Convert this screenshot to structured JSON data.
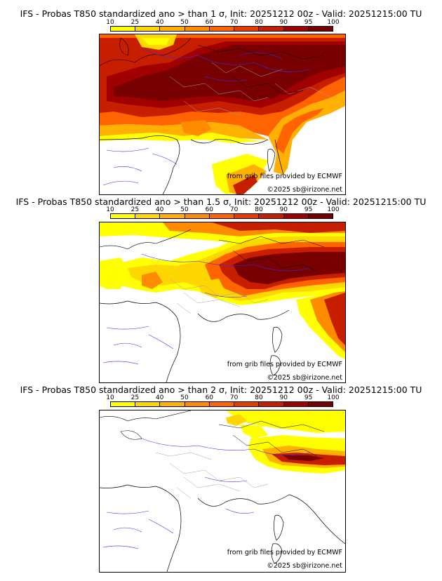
{
  "colorbar": {
    "ticks": [
      "10",
      "25",
      "40",
      "50",
      "60",
      "70",
      "80",
      "90",
      "95",
      "100"
    ],
    "colors": [
      "#ffff00",
      "#ffd700",
      "#ffb000",
      "#ff8c00",
      "#ff6400",
      "#e63c00",
      "#c81e00",
      "#a00000",
      "#780000"
    ]
  },
  "panels": [
    {
      "title": "IFS - Probas T850  standardized ano > than 1 σ, Init: 20251212 00z - Valid: 20251215:00 TU",
      "credit_source": "from grib files provided by ECMWF",
      "credit_copyright": "©2025 sb@irizone.net"
    },
    {
      "title": "IFS - Probas T850  standardized ano > than 1.5 σ, Init: 20251212 00z - Valid: 20251215:00 TU",
      "credit_source": "from grib files provided by ECMWF",
      "credit_copyright": "©2025 sb@irizone.net"
    },
    {
      "title": "IFS - Probas T850  standardized ano > than 2 σ, Init: 20251212 00z - Valid: 20251215:00 TU",
      "credit_source": "from grib files provided by ECMWF",
      "credit_copyright": "©2025 sb@irizone.net"
    }
  ]
}
